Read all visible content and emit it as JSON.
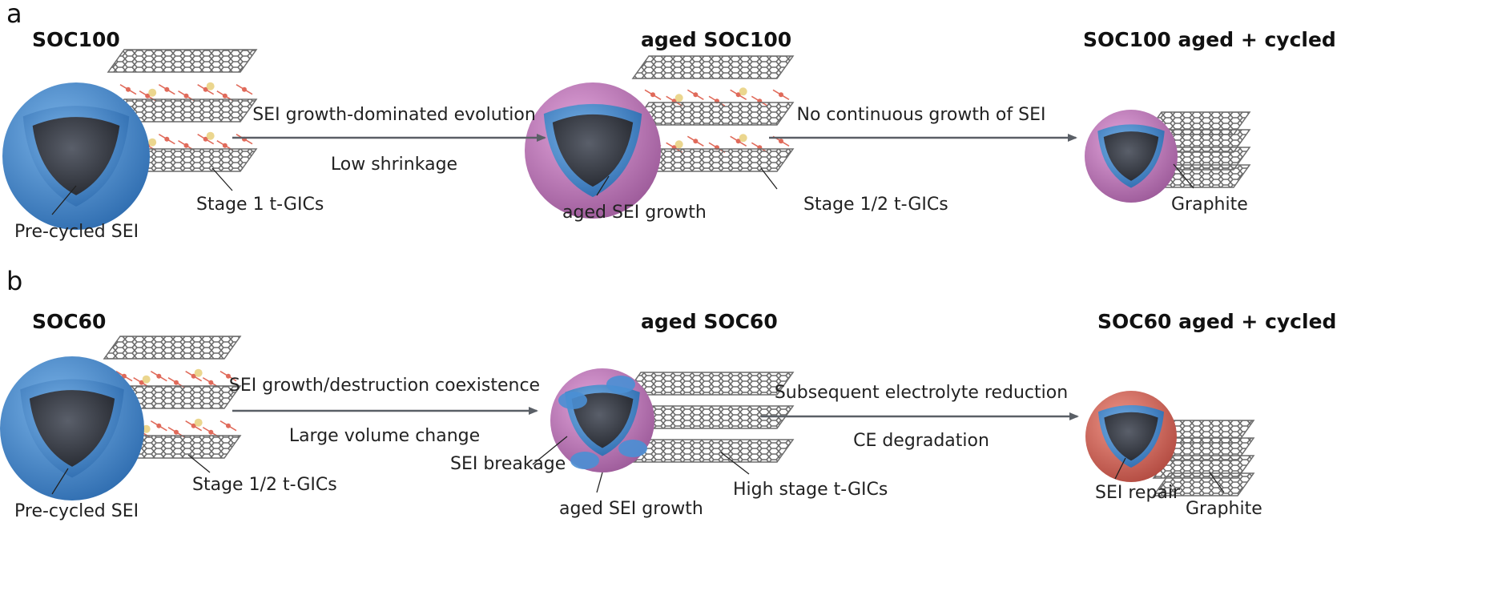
{
  "panel_a": {
    "label": "a",
    "stage1_title": "SOC100",
    "stage2_title": "aged SOC100",
    "stage3_title": "SOC100 aged + cycled",
    "arrow1_top": "SEI growth-dominated evolution",
    "arrow1_bottom": "Low shrinkage",
    "arrow2_top": "No continuous growth of SEI",
    "callouts": {
      "pre_cycled_sei": "Pre-cycled SEI",
      "stage1_gics": "Stage 1 t-GICs",
      "aged_sei_growth": "aged SEI growth",
      "stage12_gics": "Stage 1/2 t-GICs",
      "graphite": "Graphite"
    }
  },
  "panel_b": {
    "label": "b",
    "stage1_title": "SOC60",
    "stage2_title": "aged SOC60",
    "stage3_title": "SOC60 aged + cycled",
    "arrow1_top": "SEI growth/destruction coexistence",
    "arrow1_bottom": "Large volume change",
    "arrow2_top": "Subsequent electrolyte reduction",
    "arrow2_bottom": "CE degradation",
    "callouts": {
      "pre_cycled_sei": "Pre-cycled SEI",
      "stage12_gics": "Stage 1/2 t-GICs",
      "sei_breakage": "SEI breakage",
      "aged_sei_growth": "aged SEI growth",
      "high_stage_gics": "High stage t-GICs",
      "sei_repair": "SEI repair",
      "graphite": "Graphite"
    }
  },
  "colors": {
    "pre_cycled_sei": "#4a8fd4",
    "aged_sei": "#c17ab8",
    "repaired_sei": "#d9685a",
    "core": "#3a3f4a",
    "graphite": "#6b6b6b",
    "intercalant": "#e06a5a",
    "arrow": "#5a5f66"
  }
}
